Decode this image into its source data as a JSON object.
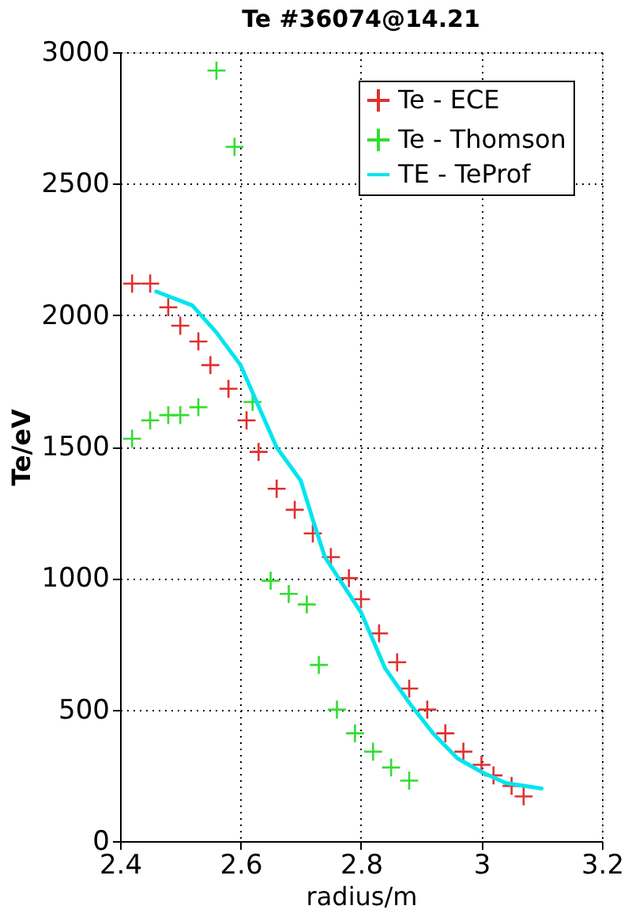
{
  "chart_data": {
    "type": "scatter",
    "title": "Te #36074@14.21",
    "xlabel": "radius/m",
    "ylabel": "Te/eV",
    "xlim": [
      2.4,
      3.2
    ],
    "xticks": [
      2.4,
      2.6,
      2.8,
      3,
      3.2
    ],
    "ylim": [
      0,
      3000
    ],
    "yticks": [
      0,
      500,
      1000,
      1500,
      2000,
      2500,
      3000
    ],
    "grid": true,
    "legend": "top right",
    "series": [
      {
        "name": "Te - ECE",
        "type": "scatter",
        "marker": "cross",
        "color": "#e03030",
        "x": [
          2.42,
          2.45,
          2.48,
          2.5,
          2.53,
          2.55,
          2.58,
          2.61,
          2.63,
          2.66,
          2.69,
          2.72,
          2.75,
          2.78,
          2.8,
          2.83,
          2.86,
          2.88,
          2.91,
          2.94,
          2.97,
          3.0,
          3.02,
          3.05,
          3.07
        ],
        "values": [
          2120,
          2120,
          2030,
          1960,
          1900,
          1810,
          1720,
          1600,
          1480,
          1340,
          1260,
          1170,
          1080,
          1000,
          920,
          790,
          680,
          580,
          500,
          410,
          340,
          290,
          250,
          210,
          170
        ]
      },
      {
        "name": "Te - Thomson",
        "type": "scatter",
        "marker": "cross",
        "color": "#33dd33",
        "x": [
          2.42,
          2.45,
          2.48,
          2.5,
          2.53,
          2.56,
          2.59,
          2.62,
          2.65,
          2.68,
          2.71,
          2.73,
          2.76,
          2.79,
          2.82,
          2.85,
          2.88
        ],
        "values": [
          1530,
          1600,
          1620,
          1620,
          1650,
          2930,
          2640,
          1670,
          990,
          940,
          900,
          670,
          500,
          410,
          340,
          280,
          230
        ]
      },
      {
        "name": "TE - TeProf",
        "type": "line",
        "marker": "none",
        "line_style": "solid",
        "color": "#00e5ee",
        "x": [
          2.46,
          2.52,
          2.56,
          2.6,
          2.66,
          2.7,
          2.72,
          2.74,
          2.8,
          2.84,
          2.88,
          2.92,
          2.96,
          3.0,
          3.04,
          3.1
        ],
        "values": [
          2090,
          2037,
          1934,
          1810,
          1497,
          1371,
          1223,
          1080,
          870,
          657,
          526,
          409,
          315,
          263,
          221,
          200
        ]
      }
    ]
  }
}
